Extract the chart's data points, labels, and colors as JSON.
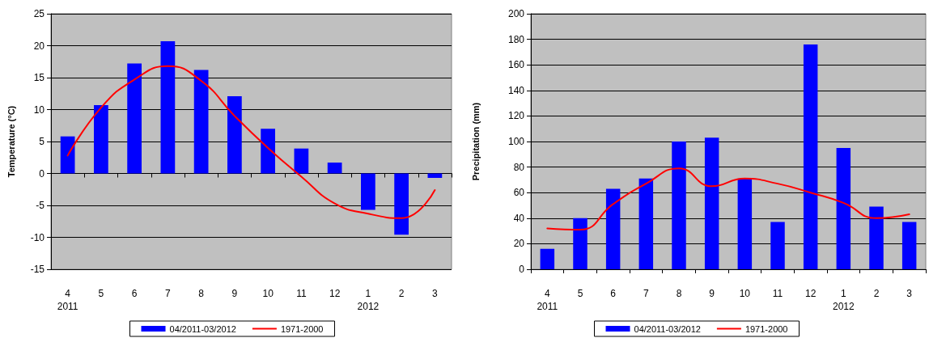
{
  "chart_data": [
    {
      "type": "bar",
      "ylabel": "Temperature (°C)",
      "categories": [
        "4\n2011",
        "5",
        "6",
        "7",
        "8",
        "9",
        "10",
        "11",
        "12",
        "1\n2012",
        "2",
        "3"
      ],
      "series": [
        {
          "name": "04/2011-03/2012",
          "color": "#0000ff",
          "values": [
            5.8,
            10.7,
            17.2,
            20.7,
            16.2,
            12.1,
            7.0,
            3.9,
            1.7,
            -5.7,
            -9.6,
            -0.7
          ]
        },
        {
          "name": "1971-2000",
          "type": "line",
          "color": "#ff0000",
          "values": [
            2.8,
            10.3,
            14.7,
            16.8,
            14.5,
            9.0,
            4.0,
            -0.5,
            -4.7,
            -6.3,
            -7.0,
            -2.6
          ]
        }
      ],
      "ylim": [
        -15,
        25
      ],
      "yticks": [
        -15,
        -10,
        -5,
        0,
        5,
        10,
        15,
        20,
        25
      ],
      "grid": "y",
      "legend": "bottom",
      "marker": "none",
      "line_style": "solid"
    },
    {
      "type": "bar",
      "ylabel": "Precipitation (mm)",
      "categories": [
        "4\n2011",
        "5",
        "6",
        "7",
        "8",
        "9",
        "10",
        "11",
        "12",
        "1\n2012",
        "2",
        "3"
      ],
      "series": [
        {
          "name": "04/2011-03/2012",
          "color": "#0000ff",
          "values": [
            16,
            40,
            63,
            71,
            100,
            103,
            71,
            37,
            176,
            95,
            49,
            37
          ]
        },
        {
          "name": "1971-2000",
          "type": "line",
          "color": "#ff0000",
          "values": [
            32,
            31,
            51,
            67,
            79,
            65,
            71,
            67,
            60,
            52,
            40,
            43
          ]
        }
      ],
      "ylim": [
        0,
        200
      ],
      "yticks": [
        0,
        20,
        40,
        60,
        80,
        100,
        120,
        140,
        160,
        180,
        200
      ],
      "grid": "y",
      "legend": "bottom",
      "marker": "none",
      "line_style": "solid"
    }
  ]
}
